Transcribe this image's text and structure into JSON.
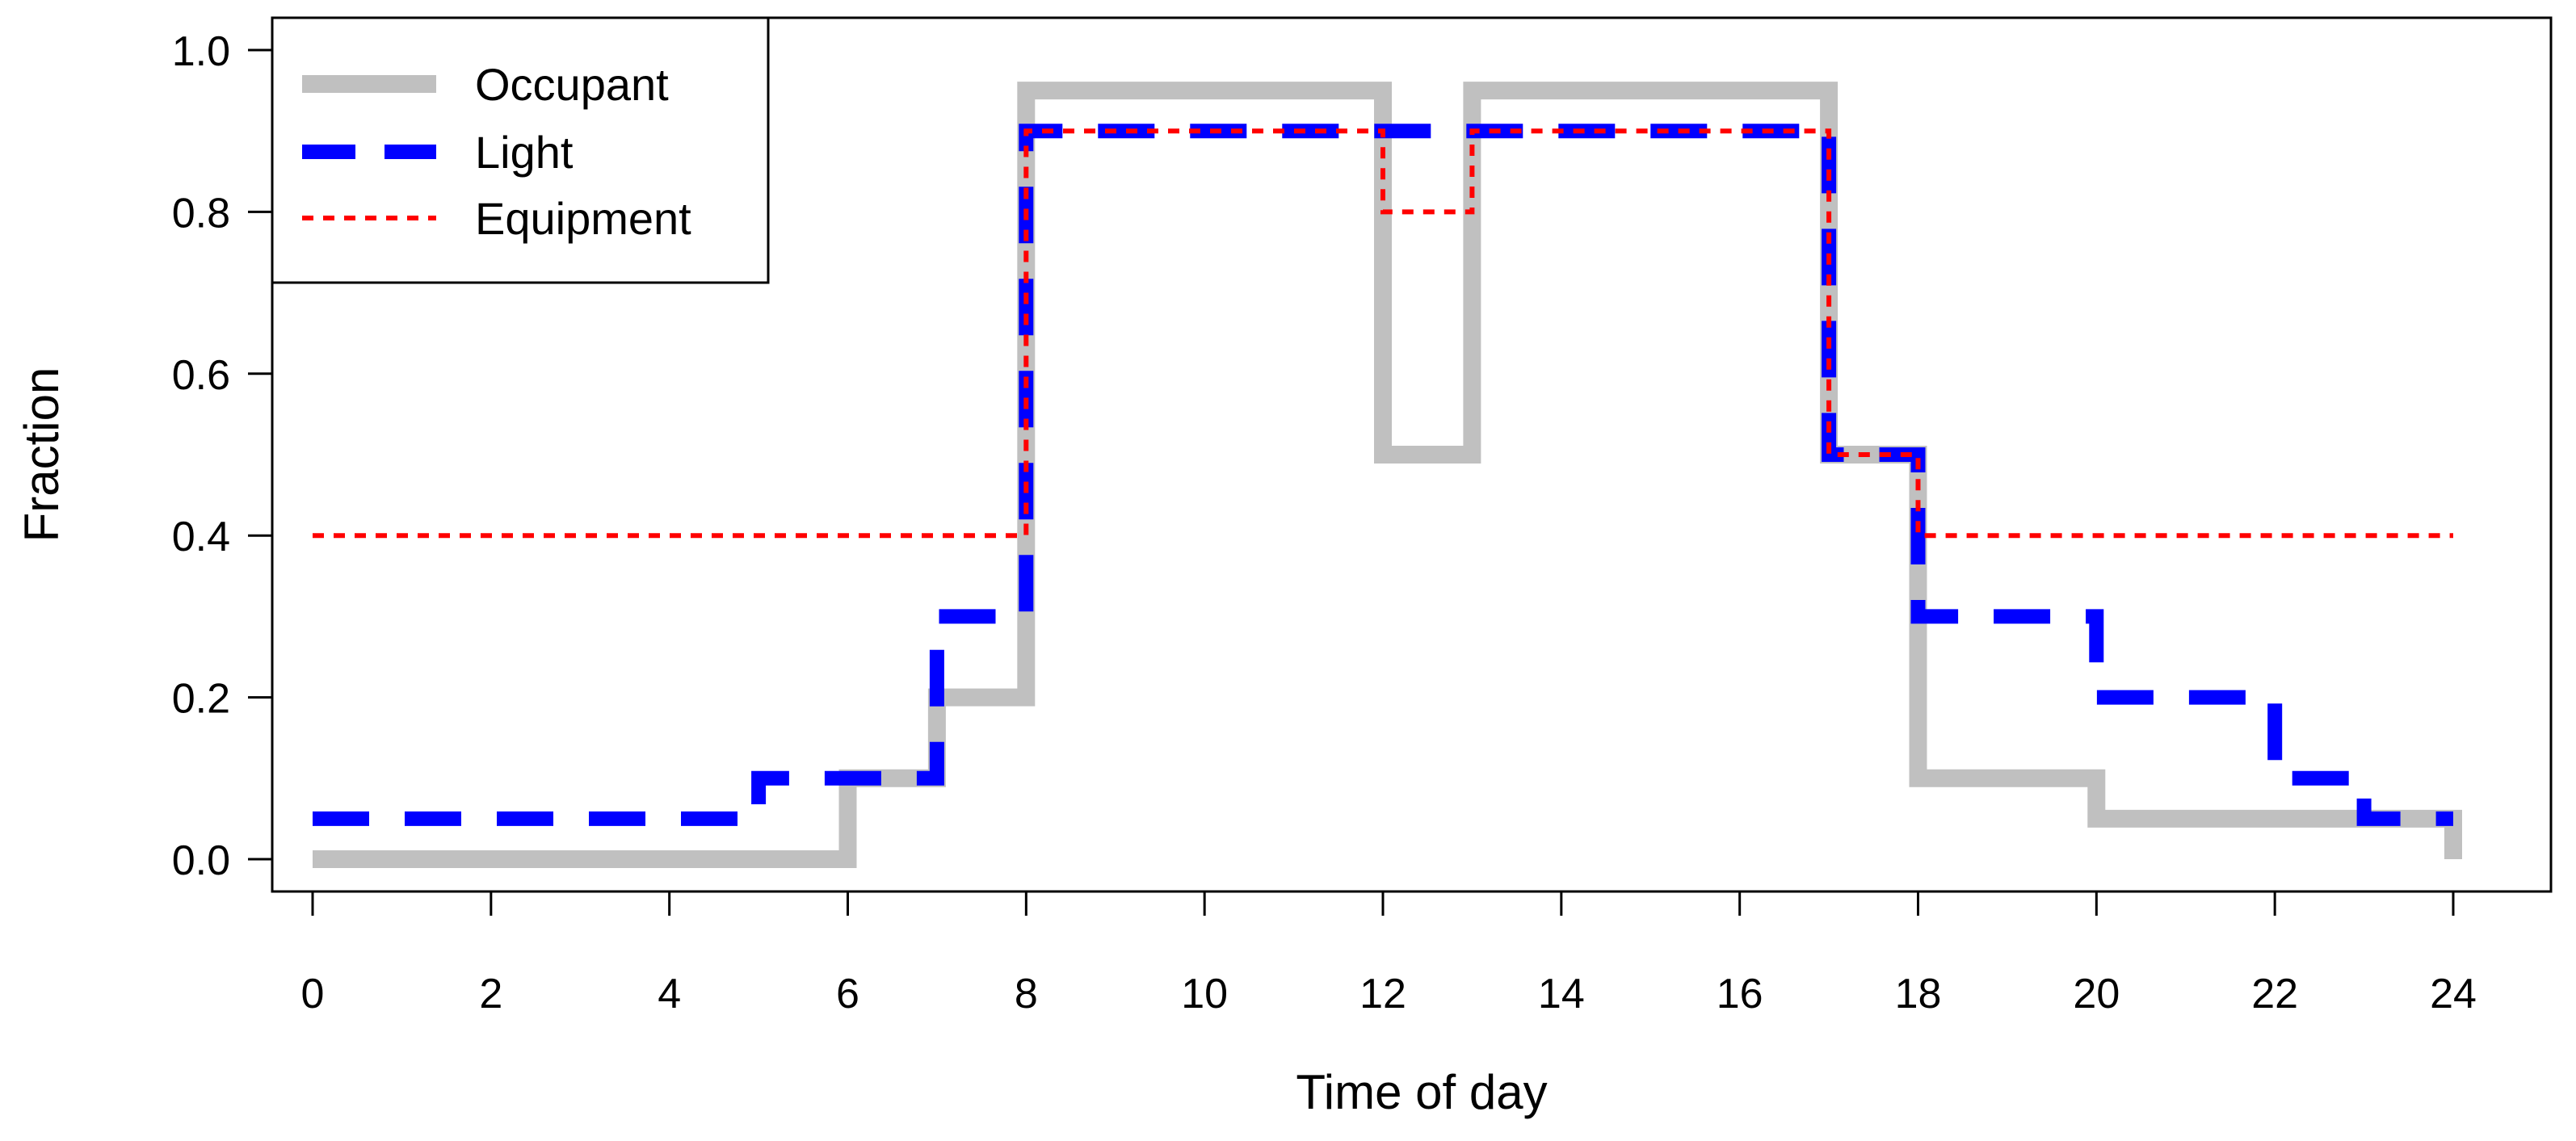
{
  "chart_data": {
    "type": "line",
    "title": "",
    "xlabel": "Time of day",
    "ylabel": "Fraction",
    "xlim": [
      0,
      24
    ],
    "ylim": [
      0,
      1.0
    ],
    "x_ticks": [
      0,
      2,
      4,
      6,
      8,
      10,
      12,
      14,
      16,
      18,
      20,
      22,
      24
    ],
    "y_ticks": [
      0.0,
      0.2,
      0.4,
      0.6,
      0.8,
      1.0
    ],
    "y_tick_labels": [
      "0.0",
      "0.2",
      "0.4",
      "0.6",
      "0.8",
      "1.0"
    ],
    "legend_position": "top-left",
    "grid": false,
    "series": [
      {
        "name": "Occupant",
        "step": true,
        "color": "#c0c0c0",
        "style": "solid",
        "points": [
          [
            0,
            0
          ],
          [
            6,
            0
          ],
          [
            6,
            0.1
          ],
          [
            7,
            0.1
          ],
          [
            7,
            0.2
          ],
          [
            8,
            0.2
          ],
          [
            8,
            0.95
          ],
          [
            12,
            0.95
          ],
          [
            12,
            0.5
          ],
          [
            13,
            0.5
          ],
          [
            13,
            0.95
          ],
          [
            17,
            0.95
          ],
          [
            17,
            0.5
          ],
          [
            18,
            0.5
          ],
          [
            18,
            0.1
          ],
          [
            20,
            0.1
          ],
          [
            20,
            0.05
          ],
          [
            24,
            0.05
          ],
          [
            24,
            0
          ]
        ]
      },
      {
        "name": "Light",
        "step": true,
        "color": "#0000ff",
        "style": "dashed",
        "points": [
          [
            0,
            0.05
          ],
          [
            5,
            0.05
          ],
          [
            5,
            0.1
          ],
          [
            7,
            0.1
          ],
          [
            7,
            0.3
          ],
          [
            8,
            0.3
          ],
          [
            8,
            0.9
          ],
          [
            17,
            0.9
          ],
          [
            17,
            0.5
          ],
          [
            18,
            0.5
          ],
          [
            18,
            0.3
          ],
          [
            20,
            0.3
          ],
          [
            20,
            0.2
          ],
          [
            22,
            0.2
          ],
          [
            22,
            0.1
          ],
          [
            23,
            0.1
          ],
          [
            23,
            0.05
          ],
          [
            24,
            0.05
          ]
        ]
      },
      {
        "name": "Equipment",
        "step": true,
        "color": "#ff0000",
        "style": "dotted",
        "points": [
          [
            0,
            0.4
          ],
          [
            8,
            0.4
          ],
          [
            8,
            0.9
          ],
          [
            12,
            0.9
          ],
          [
            12,
            0.8
          ],
          [
            13,
            0.8
          ],
          [
            13,
            0.9
          ],
          [
            17,
            0.9
          ],
          [
            17,
            0.5
          ],
          [
            18,
            0.5
          ],
          [
            18,
            0.4
          ],
          [
            24,
            0.4
          ]
        ]
      }
    ]
  }
}
